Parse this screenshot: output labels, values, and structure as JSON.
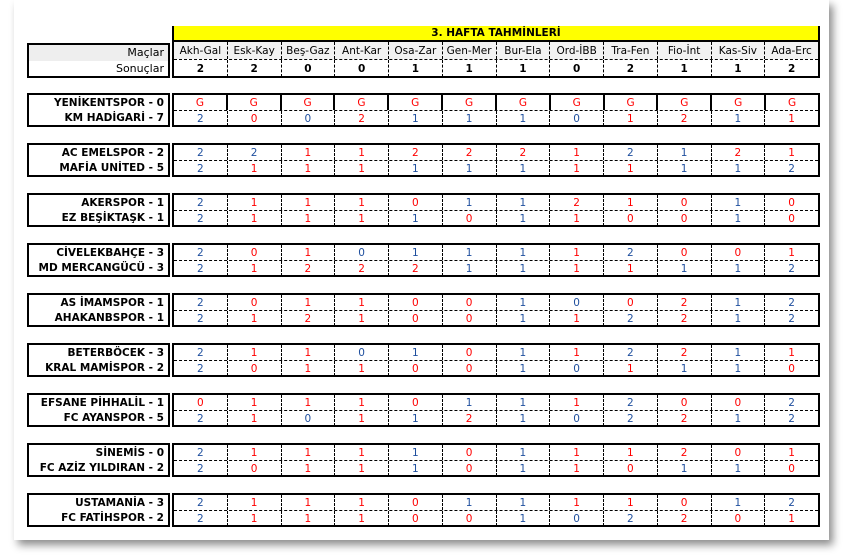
{
  "title": "3. HAFTA TAHMİNLERİ",
  "colors": {
    "correct": "#1f4f9e",
    "wrong": "#ff0000",
    "header_bg": "#ffff00"
  },
  "header": {
    "matches_label": "Maçlar",
    "results_label": "Sonuçlar",
    "matches": [
      "Akh-Gal",
      "Esk-Kay",
      "Beş-Gaz",
      "Ant-Kar",
      "Osa-Zar",
      "Gen-Mer",
      "Bur-Ela",
      "Ord-İBB",
      "Tra-Fen",
      "Fio-İnt",
      "Kas-Siv",
      "Ada-Erc"
    ],
    "results": [
      "2",
      "2",
      "0",
      "0",
      "1",
      "1",
      "1",
      "0",
      "2",
      "1",
      "1",
      "2"
    ]
  },
  "groups": [
    {
      "teams": [
        {
          "name": "YENİKENTSPOR - 0",
          "picks": [
            "G",
            "G",
            "G",
            "G",
            "G",
            "G",
            "G",
            "G",
            "G",
            "G",
            "G",
            "G"
          ]
        },
        {
          "name": "KM HADİGARİ - 7",
          "picks": [
            "2",
            "0",
            "0",
            "2",
            "1",
            "1",
            "1",
            "0",
            "1",
            "2",
            "1",
            "1"
          ]
        }
      ]
    },
    {
      "teams": [
        {
          "name": "AC EMELSPOR - 2",
          "picks": [
            "2",
            "2",
            "1",
            "1",
            "2",
            "2",
            "2",
            "1",
            "2",
            "1",
            "2",
            "1"
          ]
        },
        {
          "name": "MAFİA UNİTED - 5",
          "picks": [
            "2",
            "1",
            "1",
            "1",
            "1",
            "1",
            "1",
            "1",
            "1",
            "1",
            "1",
            "2"
          ]
        }
      ]
    },
    {
      "teams": [
        {
          "name": "AKERSPOR - 1",
          "picks": [
            "2",
            "1",
            "1",
            "1",
            "0",
            "1",
            "1",
            "2",
            "1",
            "0",
            "1",
            "0"
          ]
        },
        {
          "name": "EZ BEŞİKTAŞK - 1",
          "picks": [
            "2",
            "1",
            "1",
            "1",
            "1",
            "0",
            "1",
            "1",
            "0",
            "0",
            "1",
            "0"
          ]
        }
      ]
    },
    {
      "teams": [
        {
          "name": "CİVELEKBAHÇE - 3",
          "picks": [
            "2",
            "0",
            "1",
            "0",
            "1",
            "1",
            "1",
            "1",
            "2",
            "0",
            "0",
            "1"
          ]
        },
        {
          "name": "MD MERCANGÜCÜ - 3",
          "picks": [
            "2",
            "1",
            "2",
            "2",
            "2",
            "1",
            "1",
            "1",
            "1",
            "1",
            "1",
            "2"
          ]
        }
      ]
    },
    {
      "teams": [
        {
          "name": "AS İMAMSPOR - 1",
          "picks": [
            "2",
            "0",
            "1",
            "1",
            "0",
            "0",
            "1",
            "0",
            "0",
            "2",
            "1",
            "2"
          ]
        },
        {
          "name": "AHAKANBSPOR - 1",
          "picks": [
            "2",
            "1",
            "2",
            "1",
            "0",
            "0",
            "1",
            "1",
            "2",
            "2",
            "1",
            "2"
          ]
        }
      ]
    },
    {
      "teams": [
        {
          "name": "BETERBÖCEK - 3",
          "picks": [
            "2",
            "1",
            "1",
            "0",
            "1",
            "0",
            "1",
            "1",
            "2",
            "2",
            "1",
            "1"
          ]
        },
        {
          "name": "KRAL MAMİSPOR - 2",
          "picks": [
            "2",
            "0",
            "1",
            "1",
            "0",
            "0",
            "1",
            "0",
            "1",
            "1",
            "1",
            "0"
          ]
        }
      ]
    },
    {
      "teams": [
        {
          "name": "EFSANE PİHHALİL - 1",
          "picks": [
            "0",
            "1",
            "1",
            "1",
            "0",
            "1",
            "1",
            "1",
            "2",
            "0",
            "0",
            "2"
          ]
        },
        {
          "name": "FC AYANSPOR - 5",
          "picks": [
            "2",
            "1",
            "0",
            "1",
            "1",
            "2",
            "1",
            "0",
            "2",
            "2",
            "1",
            "2"
          ]
        }
      ]
    },
    {
      "teams": [
        {
          "name": "SİNEMİS - 0",
          "picks": [
            "2",
            "1",
            "1",
            "1",
            "1",
            "0",
            "1",
            "1",
            "1",
            "2",
            "0",
            "1"
          ]
        },
        {
          "name": "FC AZİZ YILDIRAN - 2",
          "picks": [
            "2",
            "0",
            "1",
            "1",
            "1",
            "0",
            "1",
            "1",
            "0",
            "1",
            "1",
            "0"
          ]
        }
      ]
    },
    {
      "teams": [
        {
          "name": "USTAMANİA - 3",
          "picks": [
            "2",
            "1",
            "1",
            "1",
            "0",
            "1",
            "1",
            "1",
            "1",
            "0",
            "1",
            "2"
          ]
        },
        {
          "name": "FC FATİHSPOR - 2",
          "picks": [
            "2",
            "1",
            "1",
            "1",
            "0",
            "0",
            "1",
            "0",
            "2",
            "2",
            "0",
            "1"
          ]
        }
      ]
    }
  ]
}
